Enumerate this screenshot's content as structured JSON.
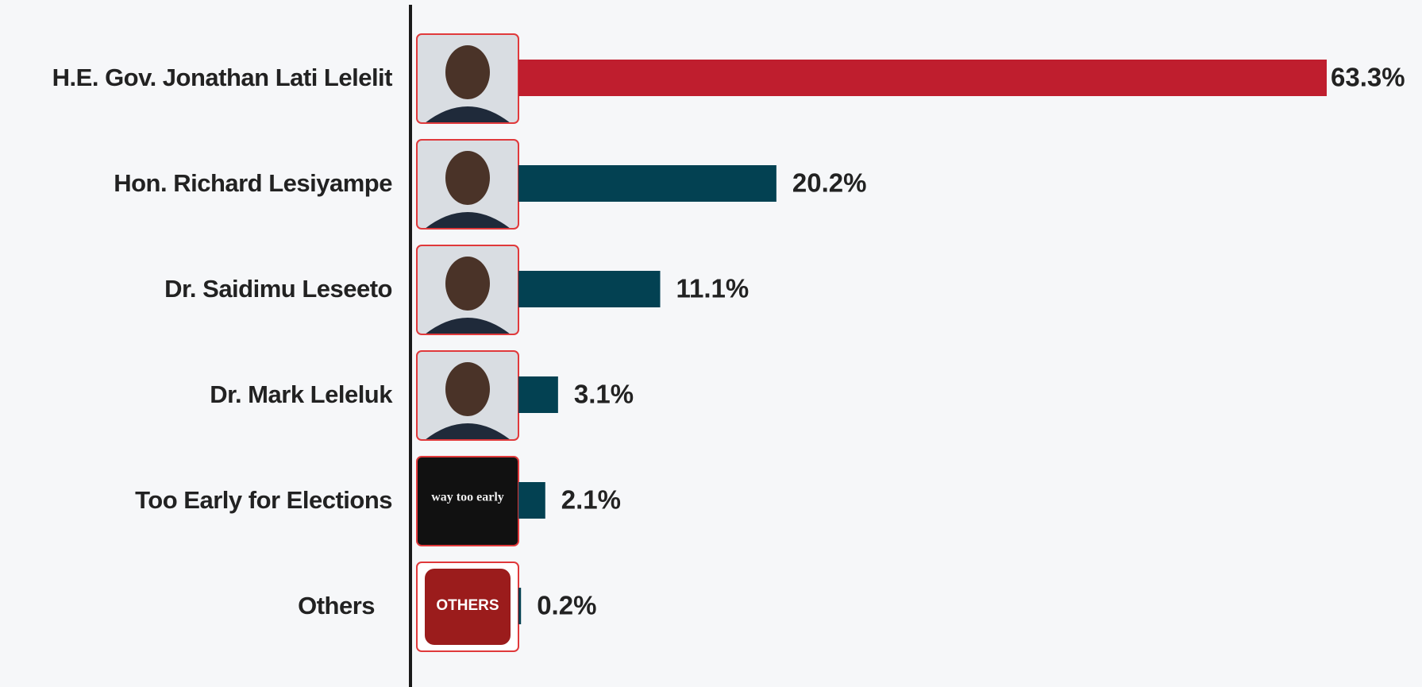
{
  "chart_data": {
    "type": "barh",
    "categories": [
      "H.E. Gov. Jonathan Lati Lelelit",
      "Hon. Richard Lesiyampe",
      "Dr. Saidimu Leseeto",
      "Dr. Mark Leleluk",
      "Too Early for Elections",
      "Others"
    ],
    "values": [
      63.3,
      20.2,
      11.1,
      3.1,
      2.1,
      0.2
    ],
    "value_labels": [
      "63.3%",
      "20.2%",
      "11.1%",
      "3.1%",
      "2.1%",
      "0.2%"
    ],
    "colors": [
      "#bf1e2e",
      "#034152",
      "#034152",
      "#034152",
      "#034152",
      "#034152"
    ],
    "photo_labels": [
      null,
      null,
      null,
      null,
      "way too early",
      "OTHERS"
    ]
  }
}
